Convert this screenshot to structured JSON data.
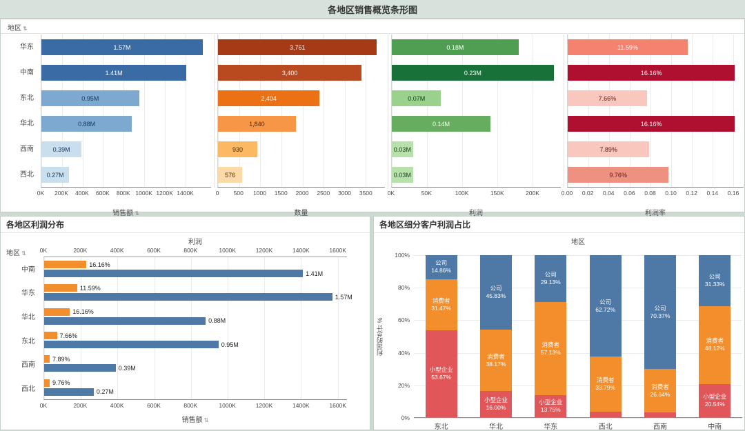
{
  "title_bar": {
    "title": "各地区销售概览条形图"
  },
  "icons": {
    "sort": "⇅"
  },
  "top_panel": {
    "row_header": "地区"
  },
  "chart_data": [
    {
      "id": "sales",
      "type": "bar",
      "orientation": "horizontal",
      "xlabel": "销售额",
      "sortable": true,
      "axis_max": 1650000,
      "categories": [
        "华东",
        "中南",
        "东北",
        "华北",
        "西南",
        "西北"
      ],
      "values": [
        1570000,
        1410000,
        950000,
        880000,
        390000,
        270000
      ],
      "bar_labels": [
        "1.57M",
        "1.41M",
        "0.95M",
        "0.88M",
        "0.39M",
        "0.27M"
      ],
      "bar_colors": [
        "#3b6ba5",
        "#3b6ba5",
        "#7da8d0",
        "#7da8d0",
        "#c9dfee",
        "#c9dfee"
      ],
      "label_colors": [
        "#ffffff",
        "#ffffff",
        "#16365c",
        "#16365c",
        "#16365c",
        "#16365c"
      ],
      "ticks": [
        {
          "v": 0,
          "label": "0K"
        },
        {
          "v": 200000,
          "label": "200K"
        },
        {
          "v": 400000,
          "label": "400K"
        },
        {
          "v": 600000,
          "label": "600K"
        },
        {
          "v": 800000,
          "label": "800K"
        },
        {
          "v": 1000000,
          "label": "1000K"
        },
        {
          "v": 1200000,
          "label": "1200K"
        },
        {
          "v": 1400000,
          "label": "1400K"
        }
      ]
    },
    {
      "id": "quantity",
      "type": "bar",
      "orientation": "horizontal",
      "xlabel": "数量",
      "sortable": false,
      "axis_max": 3950,
      "categories": [
        "华东",
        "中南",
        "东北",
        "华北",
        "西南",
        "西北"
      ],
      "values": [
        3761,
        3400,
        2404,
        1840,
        930,
        576
      ],
      "bar_labels": [
        "3,761",
        "3,400",
        "2,404",
        "1,840",
        "930",
        "576"
      ],
      "bar_colors": [
        "#a63a17",
        "#b9491f",
        "#ec7014",
        "#f79646",
        "#fdb863",
        "#fdd9a8"
      ],
      "label_colors": [
        "#ffffff",
        "#ffffff",
        "#ffffff",
        "#4a2a08",
        "#4a2a08",
        "#4a2a08"
      ],
      "ticks": [
        {
          "v": 0,
          "label": "0"
        },
        {
          "v": 500,
          "label": "500"
        },
        {
          "v": 1000,
          "label": "1000"
        },
        {
          "v": 1500,
          "label": "1500"
        },
        {
          "v": 2000,
          "label": "2000"
        },
        {
          "v": 2500,
          "label": "2500"
        },
        {
          "v": 3000,
          "label": "3000"
        },
        {
          "v": 3500,
          "label": "3500"
        }
      ]
    },
    {
      "id": "profit",
      "type": "bar",
      "orientation": "horizontal",
      "xlabel": "利润",
      "sortable": false,
      "axis_max": 240000,
      "categories": [
        "华东",
        "中南",
        "东北",
        "华北",
        "西南",
        "西北"
      ],
      "values": [
        180000,
        230000,
        70000,
        140000,
        30000,
        30000
      ],
      "bar_labels": [
        "0.18M",
        "0.23M",
        "0.07M",
        "0.14M",
        "0.03M",
        "0.03M"
      ],
      "bar_colors": [
        "#4f9e51",
        "#19713a",
        "#9ad18c",
        "#66ad5f",
        "#b8e0ab",
        "#b8e0ab"
      ],
      "label_colors": [
        "#ffffff",
        "#ffffff",
        "#0f3d1c",
        "#ffffff",
        "#0f3d1c",
        "#0f3d1c"
      ],
      "ticks": [
        {
          "v": 0,
          "label": "0K"
        },
        {
          "v": 50000,
          "label": "50K"
        },
        {
          "v": 100000,
          "label": "100K"
        },
        {
          "v": 150000,
          "label": "150K"
        },
        {
          "v": 200000,
          "label": "200K"
        }
      ]
    },
    {
      "id": "profit-rate",
      "type": "bar",
      "orientation": "horizontal",
      "xlabel": "利润率",
      "sortable": false,
      "axis_max": 0.17,
      "categories": [
        "华东",
        "中南",
        "东北",
        "华北",
        "西南",
        "西北"
      ],
      "values": [
        0.1159,
        0.1616,
        0.0766,
        0.1616,
        0.0789,
        0.0976
      ],
      "bar_labels": [
        "11.59%",
        "16.16%",
        "7.66%",
        "16.16%",
        "7.89%",
        "9.76%"
      ],
      "bar_colors": [
        "#f4826e",
        "#b01030",
        "#f9c7bd",
        "#b01030",
        "#f9c7bd",
        "#ef9180"
      ],
      "label_colors": [
        "#ffffff",
        "#ffffff",
        "#5c1a12",
        "#ffffff",
        "#5c1a12",
        "#5c1a12"
      ],
      "ticks": [
        {
          "v": 0,
          "label": "0.00"
        },
        {
          "v": 0.02,
          "label": "0.02"
        },
        {
          "v": 0.04,
          "label": "0.04"
        },
        {
          "v": 0.06,
          "label": "0.06"
        },
        {
          "v": 0.08,
          "label": "0.08"
        },
        {
          "v": 0.1,
          "label": "0.10"
        },
        {
          "v": 0.12,
          "label": "0.12"
        },
        {
          "v": 0.14,
          "label": "0.14"
        },
        {
          "v": 0.16,
          "label": "0.16"
        }
      ]
    },
    {
      "id": "profit-distribution",
      "type": "bar",
      "orientation": "horizontal",
      "title": "各地区利润分布",
      "row_header": "地区",
      "top_axis": {
        "label": "利润",
        "max": 1650000,
        "ticks": [
          {
            "v": 0,
            "label": "0K"
          },
          {
            "v": 200000,
            "label": "200K"
          },
          {
            "v": 400000,
            "label": "400K"
          },
          {
            "v": 600000,
            "label": "600K"
          },
          {
            "v": 800000,
            "label": "800K"
          },
          {
            "v": 1000000,
            "label": "1000K"
          },
          {
            "v": 1200000,
            "label": "1200K"
          },
          {
            "v": 1400000,
            "label": "1400K"
          },
          {
            "v": 1600000,
            "label": "1600K"
          }
        ]
      },
      "bottom_axis": {
        "label": "销售额",
        "sortable": true,
        "max": 1650000,
        "ticks": [
          {
            "v": 0,
            "label": "0K"
          },
          {
            "v": 200000,
            "label": "200K"
          },
          {
            "v": 400000,
            "label": "400K"
          },
          {
            "v": 600000,
            "label": "600K"
          },
          {
            "v": 800000,
            "label": "800K"
          },
          {
            "v": 1000000,
            "label": "1000K"
          },
          {
            "v": 1200000,
            "label": "1200K"
          },
          {
            "v": 1400000,
            "label": "1400K"
          },
          {
            "v": 1600000,
            "label": "1600K"
          }
        ]
      },
      "categories": [
        "中南",
        "华东",
        "华北",
        "东北",
        "西南",
        "西北"
      ],
      "series": [
        {
          "name": "利润",
          "color": "#f28e2b",
          "values": [
            230000,
            180000,
            140000,
            70000,
            30000,
            30000
          ],
          "labels": [
            "16.16%",
            "11.59%",
            "16.16%",
            "7.66%",
            "7.89%",
            "9.76%"
          ]
        },
        {
          "name": "销售额",
          "color": "#4e79a7",
          "values": [
            1410000,
            1570000,
            880000,
            950000,
            390000,
            270000
          ],
          "labels": [
            "1.41M",
            "1.57M",
            "0.88M",
            "0.95M",
            "0.39M",
            "0.27M"
          ]
        }
      ]
    },
    {
      "id": "segment-profit-share",
      "type": "stacked_bar",
      "percent": true,
      "title": "各地区细分客户利润占比",
      "top_label": "地区",
      "ylabel": "利润的总计 %",
      "label_min_value": 8,
      "yticks": [
        {
          "v": 0,
          "label": "0%"
        },
        {
          "v": 20,
          "label": "20%"
        },
        {
          "v": 40,
          "label": "40%"
        },
        {
          "v": 60,
          "label": "60%"
        },
        {
          "v": 80,
          "label": "80%"
        },
        {
          "v": 100,
          "label": "100%"
        }
      ],
      "categories": [
        "东北",
        "华北",
        "华东",
        "西北",
        "西南",
        "中南"
      ],
      "series": [
        {
          "name": "小型企业",
          "color": "#e15759",
          "values": [
            53.67,
            16.0,
            13.75,
            3.49,
            2.99,
            20.54
          ]
        },
        {
          "name": "消费者",
          "color": "#f28e2b",
          "values": [
            31.47,
            38.17,
            57.13,
            33.79,
            26.64,
            48.12
          ]
        },
        {
          "name": "公司",
          "color": "#4e79a7",
          "values": [
            14.86,
            45.83,
            29.13,
            62.72,
            70.37,
            31.33
          ]
        }
      ]
    }
  ]
}
